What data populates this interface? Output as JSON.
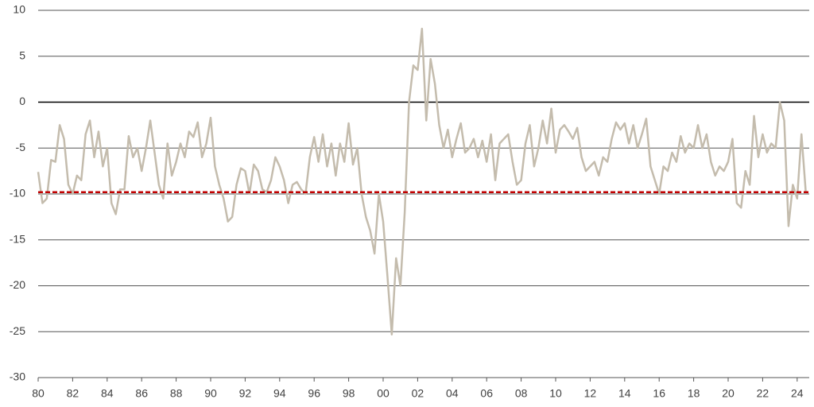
{
  "chart_data": {
    "type": "line",
    "x": [
      1980,
      1980.25,
      1980.5,
      1980.75,
      1981,
      1981.25,
      1981.5,
      1981.75,
      1982,
      1982.25,
      1982.5,
      1982.75,
      1983,
      1983.25,
      1983.5,
      1983.75,
      1984,
      1984.25,
      1984.5,
      1984.75,
      1985,
      1985.25,
      1985.5,
      1985.75,
      1986,
      1986.25,
      1986.5,
      1986.75,
      1987,
      1987.25,
      1987.5,
      1987.75,
      1988,
      1988.25,
      1988.5,
      1988.75,
      1989,
      1989.25,
      1989.5,
      1989.75,
      1990,
      1990.25,
      1990.5,
      1990.75,
      1991,
      1991.25,
      1991.5,
      1991.75,
      1992,
      1992.25,
      1992.5,
      1992.75,
      1993,
      1993.25,
      1993.5,
      1993.75,
      1994,
      1994.25,
      1994.5,
      1994.75,
      1995,
      1995.25,
      1995.5,
      1995.75,
      1996,
      1996.25,
      1996.5,
      1996.75,
      1997,
      1997.25,
      1997.5,
      1997.75,
      1998,
      1998.25,
      1998.5,
      1998.75,
      1999,
      1999.25,
      1999.5,
      1999.75,
      2000,
      2000.25,
      2000.5,
      2000.75,
      2001,
      2001.25,
      2001.5,
      2001.75,
      2002,
      2002.25,
      2002.5,
      2002.75,
      2003,
      2003.25,
      2003.5,
      2003.75,
      2004,
      2004.25,
      2004.5,
      2004.75,
      2005,
      2005.25,
      2005.5,
      2005.75,
      2006,
      2006.25,
      2006.5,
      2006.75,
      2007,
      2007.25,
      2007.5,
      2007.75,
      2008,
      2008.25,
      2008.5,
      2008.75,
      2009,
      2009.25,
      2009.5,
      2009.75,
      2010,
      2010.25,
      2010.5,
      2010.75,
      2011,
      2011.25,
      2011.5,
      2011.75,
      2012,
      2012.25,
      2012.5,
      2012.75,
      2013,
      2013.25,
      2013.5,
      2013.75,
      2014,
      2014.25,
      2014.5,
      2014.75,
      2015,
      2015.25,
      2015.5,
      2015.75,
      2016,
      2016.25,
      2016.5,
      2016.75,
      2017,
      2017.25,
      2017.5,
      2017.75,
      2018,
      2018.25,
      2018.5,
      2018.75,
      2019,
      2019.25,
      2019.5,
      2019.75,
      2020,
      2020.25,
      2020.5,
      2020.75,
      2021,
      2021.25,
      2021.5,
      2021.75,
      2022,
      2022.25,
      2022.5,
      2022.75,
      2023,
      2023.25,
      2023.5,
      2023.75,
      2024,
      2024.25,
      2024.5
    ],
    "series": [
      {
        "color": "#c4bcad",
        "values": [
          -7.6,
          -11,
          -10.5,
          -6.3,
          -6.5,
          -2.5,
          -4,
          -9,
          -10,
          -8,
          -8.5,
          -3.5,
          -2,
          -6,
          -3.2,
          -7,
          -5,
          -11,
          -12.2,
          -9.5,
          -9.5,
          -3.7,
          -6,
          -5,
          -7.5,
          -5,
          -2,
          -5.5,
          -9,
          -10.5,
          -4.5,
          -8,
          -6.5,
          -4.5,
          -6,
          -3.2,
          -3.8,
          -2.2,
          -6,
          -4.5,
          -1.7,
          -7,
          -9,
          -10.5,
          -13,
          -12.5,
          -9,
          -7.2,
          -7.5,
          -10,
          -6.8,
          -7.5,
          -9.5,
          -9.8,
          -8.5,
          -6,
          -7,
          -8.5,
          -11,
          -9,
          -8.7,
          -9.5,
          -10,
          -6,
          -3.8,
          -6.5,
          -3.5,
          -7,
          -4.5,
          -8,
          -4.5,
          -6.5,
          -2.3,
          -6.8,
          -5,
          -10,
          -12.5,
          -14,
          -16.5,
          -10,
          -13,
          -19,
          -25.3,
          -17,
          -20,
          -12,
          0,
          4,
          3.5,
          8,
          -2,
          4.7,
          2,
          -2.5,
          -5,
          -3,
          -6,
          -4,
          -2.3,
          -5.5,
          -5,
          -4,
          -6,
          -4.2,
          -6.5,
          -3.5,
          -8.5,
          -4.5,
          -4,
          -3.5,
          -6.5,
          -9,
          -8.5,
          -4.5,
          -2.5,
          -7,
          -5,
          -2,
          -4.5,
          -0.7,
          -5.5,
          -3,
          -2.5,
          -3.2,
          -4,
          -2.8,
          -6,
          -7.5,
          -7,
          -6.5,
          -8,
          -6,
          -6.5,
          -4,
          -2.2,
          -3,
          -2.3,
          -4.5,
          -2.5,
          -5,
          -3.5,
          -1.8,
          -7,
          -8.5,
          -10,
          -7,
          -7.5,
          -5.5,
          -6.5,
          -3.7,
          -5.5,
          -4.5,
          -5,
          -2.5,
          -5,
          -3.5,
          -6.5,
          -8,
          -7,
          -7.5,
          -6.5,
          -4,
          -11,
          -11.5,
          -7.5,
          -9,
          -1.5,
          -6,
          -3.5,
          -5.5,
          -4.5,
          -5,
          0,
          -2,
          -13.5,
          -9,
          -10.5,
          -3.5,
          -9.8
        ]
      }
    ],
    "reference_line": {
      "value": -9.8,
      "color": "#c00000"
    },
    "xlim": [
      1980,
      2024.7
    ],
    "xticks": [
      {
        "value": 1980,
        "label": "80"
      },
      {
        "value": 1982,
        "label": "82"
      },
      {
        "value": 1984,
        "label": "84"
      },
      {
        "value": 1986,
        "label": "86"
      },
      {
        "value": 1988,
        "label": "88"
      },
      {
        "value": 1990,
        "label": "90"
      },
      {
        "value": 1992,
        "label": "92"
      },
      {
        "value": 1994,
        "label": "94"
      },
      {
        "value": 1996,
        "label": "96"
      },
      {
        "value": 1998,
        "label": "98"
      },
      {
        "value": 2000,
        "label": "00"
      },
      {
        "value": 2002,
        "label": "02"
      },
      {
        "value": 2004,
        "label": "04"
      },
      {
        "value": 2006,
        "label": "06"
      },
      {
        "value": 2008,
        "label": "08"
      },
      {
        "value": 2010,
        "label": "10"
      },
      {
        "value": 2012,
        "label": "12"
      },
      {
        "value": 2014,
        "label": "14"
      },
      {
        "value": 2016,
        "label": "16"
      },
      {
        "value": 2018,
        "label": "18"
      },
      {
        "value": 2020,
        "label": "20"
      },
      {
        "value": 2022,
        "label": "22"
      },
      {
        "value": 2024,
        "label": "24"
      }
    ],
    "ylim": [
      -30,
      10
    ],
    "yticks": [
      10,
      5,
      0,
      -5,
      -10,
      -15,
      -20,
      -25,
      -30
    ],
    "grid": true
  }
}
